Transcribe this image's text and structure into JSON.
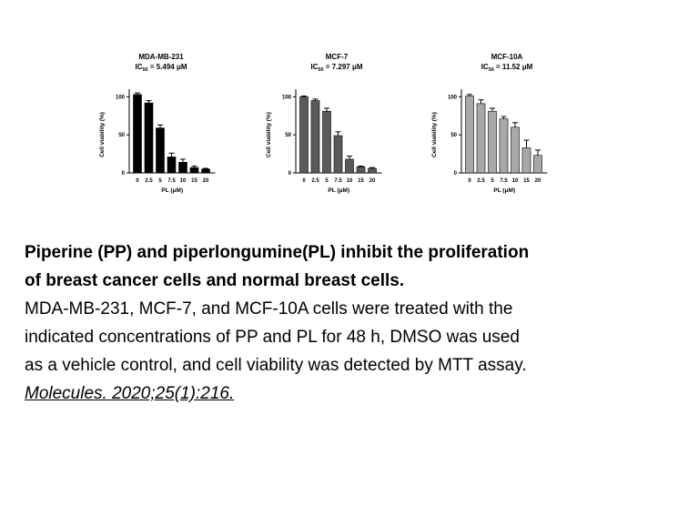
{
  "chart_data": [
    {
      "type": "bar",
      "title": "MDA-MB-231",
      "subtitle": [
        "IC",
        "50",
        " = 5.494 μM"
      ],
      "xlabel": "PL (μM)",
      "ylabel": "Cell viability (%)",
      "categories": [
        "0",
        "2.5",
        "5",
        "7.5",
        "10",
        "15",
        "20"
      ],
      "values": [
        103,
        92,
        59,
        21,
        14,
        7,
        5
      ],
      "errors": [
        2,
        3,
        4,
        5,
        4,
        2,
        1
      ],
      "ylim": [
        0,
        110
      ],
      "yticks": [
        0,
        50,
        100
      ],
      "color": "#000000"
    },
    {
      "type": "bar",
      "title": "MCF-7",
      "subtitle": [
        "IC",
        "50",
        " = 7.297 μM"
      ],
      "xlabel": "PL (μM)",
      "ylabel": "Cell viability (%)",
      "categories": [
        "0",
        "2.5",
        "5",
        "7.5",
        "10",
        "15",
        "20"
      ],
      "values": [
        100,
        95,
        81,
        49,
        18,
        8,
        6
      ],
      "errors": [
        1,
        2,
        4,
        5,
        4,
        1,
        1
      ],
      "ylim": [
        0,
        110
      ],
      "yticks": [
        0,
        50,
        100
      ],
      "color": "#5a5a5a"
    },
    {
      "type": "bar",
      "title": "MCF-10A",
      "subtitle": [
        "IC",
        "50",
        " = 11.52 μM"
      ],
      "xlabel": "PL (μM)",
      "ylabel": "Cell viability (%)",
      "categories": [
        "0",
        "2.5",
        "5",
        "7.5",
        "10",
        "15",
        "20"
      ],
      "values": [
        101,
        91,
        81,
        71,
        60,
        33,
        23
      ],
      "errors": [
        2,
        5,
        4,
        3,
        6,
        10,
        7
      ],
      "ylim": [
        0,
        110
      ],
      "yticks": [
        0,
        50,
        100
      ],
      "color": "#a8a8a8"
    }
  ],
  "caption": {
    "heading_line1": "Piperine (PP) and piperlongumine(PL) inhibit the proliferation",
    "heading_line2": "of breast cancer cells and normal breast cells.",
    "body_line1": "MDA-MB-231, MCF-7, and MCF-10A cells were treated with the",
    "body_line2": "indicated concentrations of PP and PL for 48 h, DMSO was used",
    "body_line3": "as a vehicle control, and cell viability was detected by MTT assay.",
    "citation": "Molecules. 2020;25(1):216."
  }
}
